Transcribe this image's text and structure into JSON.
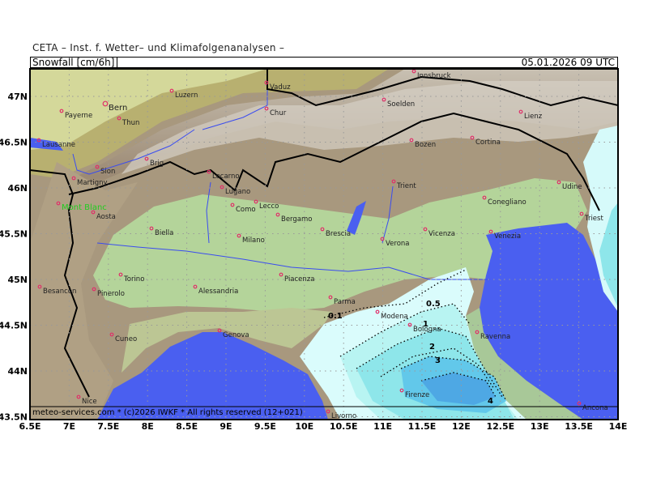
{
  "header": {
    "title": "CETA – Inst. f. Wetter– und Klimafolgenanalysen –",
    "field": "Snowfall [cm/6h]",
    "valid_time": "05.01.2026 09 UTC"
  },
  "footer": {
    "credit": "meteo-services.com * (c)2026 IWKF * All rights reserved (12+021)"
  },
  "axes": {
    "lon_ticks": [
      "6.5E",
      "7E",
      "7.5E",
      "8E",
      "8.5E",
      "9E",
      "9.5E",
      "10E",
      "10.5E",
      "11E",
      "11.5E",
      "12E",
      "12.5E",
      "13E",
      "13.5E",
      "14E"
    ],
    "lat_ticks": [
      "47N",
      "46.5N",
      "46N",
      "45.5N",
      "45N",
      "44.5N",
      "44N",
      "43.5N"
    ]
  },
  "contours": {
    "labels": [
      "0.1",
      "0.5",
      "1",
      "2",
      "3",
      "4"
    ]
  },
  "colors": {
    "sea": "#4a5ff0",
    "plain": "#b4d49a",
    "alps": "#a08c78",
    "snow_light": "#dafcfc",
    "snow_mid": "#8ee6ea",
    "snow_high": "#5aaee6",
    "river": "#3a4cf0",
    "city": "#e0306a",
    "highlight": "#22cc22"
  },
  "cities": [
    "Innsbruck",
    "Vaduz",
    "Luzern",
    "Bern",
    "Payerne",
    "Chur",
    "Soelden",
    "Lienz",
    "Thun",
    "Lausanne",
    "Bozen",
    "Cortina",
    "Brig",
    "Sion",
    "Martigny",
    "Locarno",
    "Trient",
    "Udine",
    "Lugano",
    "Como",
    "Lecco",
    "Conegliano",
    "Mont Blanc",
    "Aosta",
    "Bergamo",
    "Biella",
    "Triest",
    "Milano",
    "Brescia",
    "Verona",
    "Vicenza",
    "Venezia",
    "Torino",
    "Piacenza",
    "Besancon",
    "Pinerolo",
    "Alessandria",
    "Parma",
    "Modena",
    "Bologna",
    "Cuneo",
    "Genova",
    "Ravenna",
    "Firenze",
    "Nice",
    "Livorno",
    "Ancona"
  ]
}
